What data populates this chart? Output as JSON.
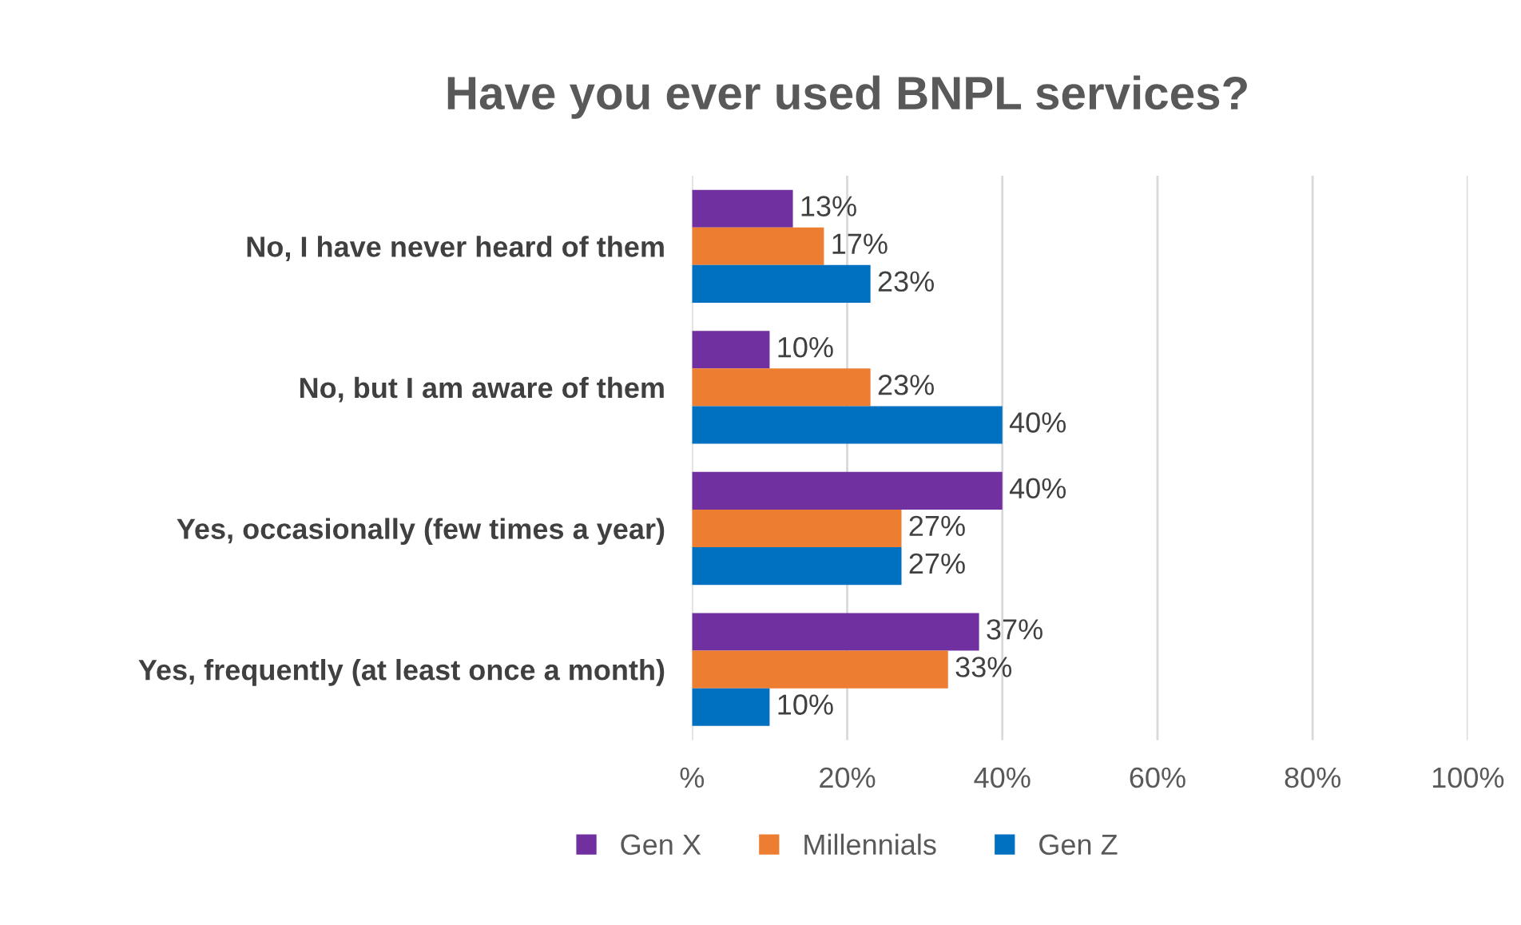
{
  "chart_data": {
    "type": "bar",
    "orientation": "horizontal",
    "title": "Have you ever used BNPL services?",
    "categories": [
      "No, I have never heard of them",
      "No, but I am aware of them",
      "Yes, occasionally (few times a year)",
      "Yes, frequently (at least once a month)"
    ],
    "series": [
      {
        "name": "Gen X",
        "color": "#7030a0",
        "values": [
          13,
          10,
          40,
          37
        ],
        "value_labels": [
          "13%",
          "10%",
          "40%",
          "37%"
        ]
      },
      {
        "name": "Millennials",
        "color": "#ed7d31",
        "values": [
          17,
          23,
          27,
          33
        ],
        "value_labels": [
          "17%",
          "23%",
          "27%",
          "33%"
        ]
      },
      {
        "name": "Gen Z",
        "color": "#0070c0",
        "values": [
          23,
          40,
          27,
          10
        ],
        "value_labels": [
          "23%",
          "40%",
          "27%",
          "10%"
        ]
      }
    ],
    "xlim": [
      0,
      100
    ],
    "xticks": [
      {
        "value": 0,
        "label": "%"
      },
      {
        "value": 20,
        "label": "20%"
      },
      {
        "value": 40,
        "label": "40%"
      },
      {
        "value": 60,
        "label": "60%"
      },
      {
        "value": 80,
        "label": "80%"
      },
      {
        "value": 100,
        "label": "100%"
      }
    ],
    "grid": "x",
    "legend": "bottom"
  }
}
